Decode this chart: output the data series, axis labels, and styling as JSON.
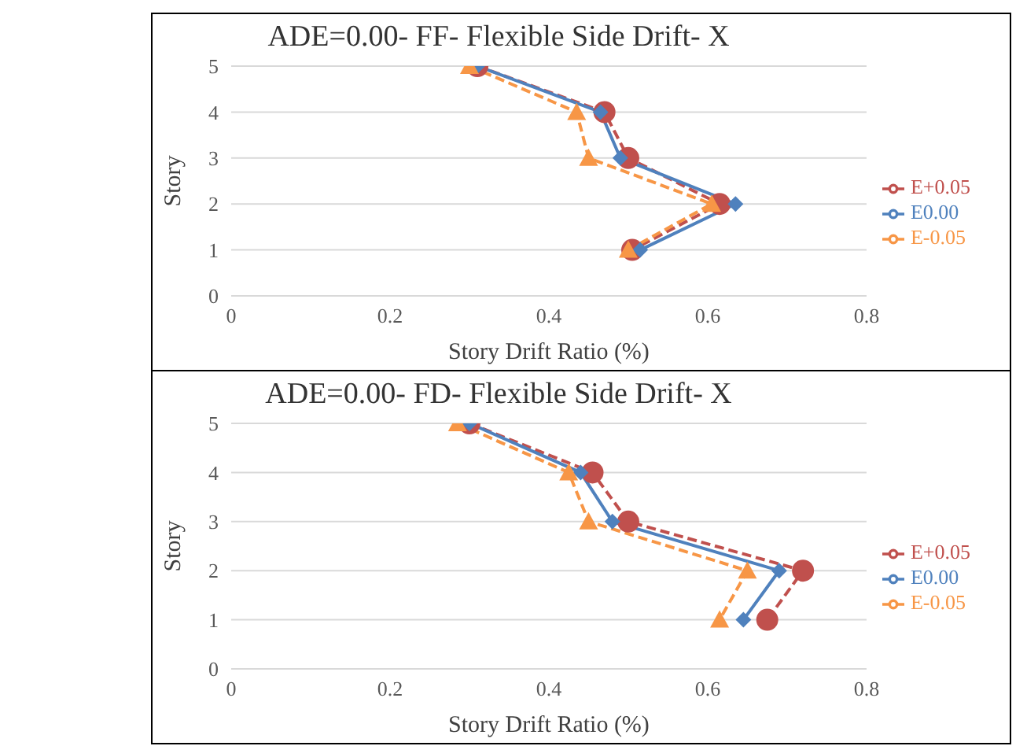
{
  "chart_data": [
    {
      "type": "line",
      "title": "ADE=0.00- FF- Flexible Side Drift- X",
      "xlabel": "Story Drift Ratio (%)",
      "ylabel": "Story",
      "xlim": [
        0,
        0.8
      ],
      "xticks": [
        0,
        0.2,
        0.4,
        0.6,
        0.8
      ],
      "ylim": [
        0,
        5
      ],
      "yticks": [
        0,
        1,
        2,
        3,
        4,
        5
      ],
      "grid": "y",
      "legend": "right",
      "series": [
        {
          "name": "E+0.05",
          "color": "#c0504d",
          "marker": "circle",
          "line_style": "dashed",
          "x": [
            0.31,
            0.47,
            0.5,
            0.615,
            0.505
          ],
          "values": [
            5,
            4,
            3,
            2,
            1
          ]
        },
        {
          "name": "E0.00",
          "color": "#4f81bd",
          "marker": "diamond",
          "line_style": "solid",
          "x": [
            0.31,
            0.465,
            0.49,
            0.635,
            0.515
          ],
          "values": [
            5,
            4,
            3,
            2,
            1
          ]
        },
        {
          "name": "E-0.05",
          "color": "#f79646",
          "marker": "triangle",
          "line_style": "dashed",
          "x": [
            0.3,
            0.435,
            0.45,
            0.605,
            0.5
          ],
          "values": [
            5,
            4,
            3,
            2,
            1
          ]
        }
      ]
    },
    {
      "type": "line",
      "title": "ADE=0.00- FD- Flexible Side Drift- X",
      "xlabel": "Story Drift Ratio (%)",
      "ylabel": "Story",
      "xlim": [
        0,
        0.8
      ],
      "xticks": [
        0,
        0.2,
        0.4,
        0.6,
        0.8
      ],
      "ylim": [
        0,
        5
      ],
      "yticks": [
        0,
        1,
        2,
        3,
        4,
        5
      ],
      "grid": "y",
      "legend": "right",
      "series": [
        {
          "name": "E+0.05",
          "color": "#c0504d",
          "marker": "circle",
          "line_style": "dashed",
          "x": [
            0.3,
            0.455,
            0.5,
            0.72,
            0.675
          ],
          "values": [
            5,
            4,
            3,
            2,
            1
          ]
        },
        {
          "name": "E0.00",
          "color": "#4f81bd",
          "marker": "diamond",
          "line_style": "solid",
          "x": [
            0.3,
            0.44,
            0.48,
            0.69,
            0.645
          ],
          "values": [
            5,
            4,
            3,
            2,
            1
          ]
        },
        {
          "name": "E-0.05",
          "color": "#f79646",
          "marker": "triangle",
          "line_style": "dashed",
          "x": [
            0.285,
            0.425,
            0.45,
            0.65,
            0.615
          ],
          "values": [
            5,
            4,
            3,
            2,
            1
          ]
        }
      ]
    }
  ]
}
